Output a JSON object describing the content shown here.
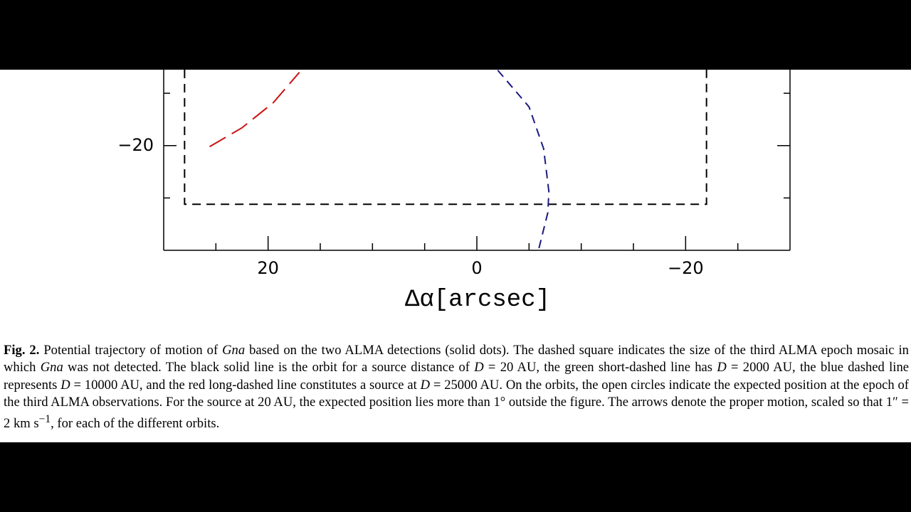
{
  "chart_data": {
    "type": "line",
    "xlabel": "Δα[arcsec]",
    "xlim": [
      30,
      -30
    ],
    "ylim": [
      -30,
      -12.75
    ],
    "xticks": [
      20,
      0,
      {
        "value": -20,
        "label": "−20"
      }
    ],
    "xminor": [
      25,
      15,
      10,
      5,
      -5,
      -10,
      -15,
      -25
    ],
    "yticks": [
      {
        "value": -20,
        "label": "−20"
      }
    ],
    "yminor": [
      -25,
      -15
    ],
    "series": [
      {
        "color": "#000000",
        "style": "dashed",
        "x": [
          28,
          28,
          -22,
          -22
        ],
        "values": [
          -12.75,
          -25.6,
          -25.6,
          -12.75
        ]
      },
      {
        "color": "#cc1111",
        "style": "long-dashed",
        "x": [
          25.6,
          22.5,
          19.5,
          17.0
        ],
        "values": [
          -20.1,
          -18.3,
          -15.9,
          -13.0
        ]
      },
      {
        "color": "#1a1a80",
        "style": "dashed",
        "x": [
          -2.0,
          -5.0,
          -6.4,
          -6.9,
          -6.8,
          -5.9
        ],
        "values": [
          -12.8,
          -16.3,
          -20.3,
          -24.4,
          -26.4,
          -30
        ]
      }
    ]
  },
  "caption": {
    "label": "Fig. 2.",
    "parts": [
      " Potential trajectory of motion of ",
      "Gna",
      " based on the two ALMA detections (solid dots). The dashed square indicates the size of the third ALMA epoch mosaic in which ",
      "Gna",
      " was not detected. The black solid line is the orbit for a source distance of ",
      "D",
      " = 20 AU, the green short-dashed line has ",
      "D",
      " = 2000 AU, the blue dashed line represents ",
      "D",
      " = 10000 AU, and the red long-dashed line constitutes a source at ",
      "D",
      " = 25000 AU. On the orbits, the open circles indicate the expected position at the epoch of the third ALMA observations. For the source at 20 AU, the expected position lies more than 1° outside the figure. The arrows denote the proper motion, scaled so that 1″ = 2 km s",
      "−1",
      ", for each of the different orbits."
    ]
  }
}
